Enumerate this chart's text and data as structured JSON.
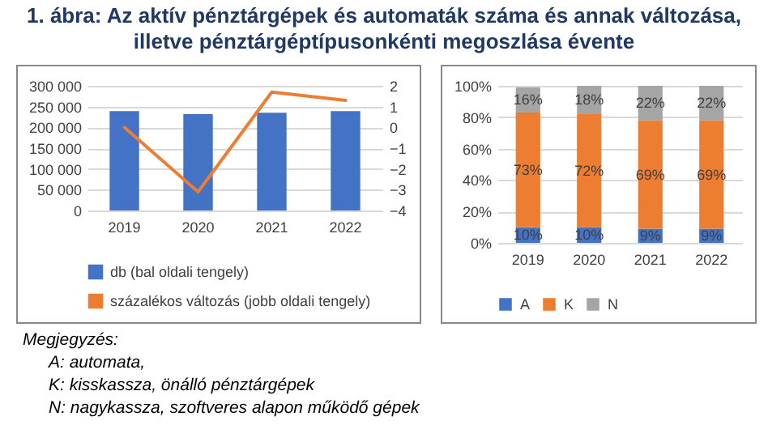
{
  "chart_data": [
    {
      "type": "bar",
      "title": "1. ábra: Az aktív pénztárgépek és automaták száma és annak változása, illetve pénztárgéptípusonkénti megoszlása évente",
      "categories": [
        "2019",
        "2020",
        "2021",
        "2022"
      ],
      "series": [
        {
          "type": "bar",
          "name": "db (bal oldali tengely)",
          "color": "#4472c4",
          "values": [
            239000,
            232000,
            235000,
            239000
          ]
        },
        {
          "type": "line",
          "name": "százalékos változás (jobb oldali tengely)",
          "color": "#ed7d31",
          "axis": "y2",
          "values": [
            0,
            -3.1,
            1.7,
            1.3
          ]
        }
      ],
      "ylim": [
        0,
        300000
      ],
      "yticks": [
        {
          "value": 0,
          "label": "0"
        },
        {
          "value": 50000,
          "label": "50 000"
        },
        {
          "value": 100000,
          "label": "100 000"
        },
        {
          "value": 150000,
          "label": "150 000"
        },
        {
          "value": 200000,
          "label": "200 000"
        },
        {
          "value": 250000,
          "label": "250 000"
        },
        {
          "value": 300000,
          "label": "300 000"
        }
      ],
      "y2lim": [
        -4,
        2
      ],
      "y2ticks": [
        -4,
        -3,
        -2,
        -1,
        0,
        1,
        2
      ],
      "grid": "y",
      "legend": "bottom"
    },
    {
      "type": "bar",
      "stacked": true,
      "categories": [
        "2019",
        "2020",
        "2021",
        "2022"
      ],
      "series": [
        {
          "name": "A",
          "color": "#4472c4",
          "values": [
            10,
            10,
            9,
            9
          ],
          "value_labels": [
            "10%",
            "10%",
            "9%",
            "9%"
          ]
        },
        {
          "name": "K",
          "color": "#ed7d31",
          "values": [
            73,
            72,
            69,
            69
          ],
          "value_labels": [
            "73%",
            "72%",
            "69%",
            "69%"
          ]
        },
        {
          "name": "N",
          "color": "#a5a5a5",
          "values": [
            16,
            18,
            22,
            22
          ],
          "value_labels": [
            "16%",
            "18%",
            "22%",
            "22%"
          ]
        }
      ],
      "ylim": [
        0,
        100
      ],
      "yticks": [
        {
          "value": 0,
          "label": "0%"
        },
        {
          "value": 20,
          "label": "20%"
        },
        {
          "value": 40,
          "label": "40%"
        },
        {
          "value": 60,
          "label": "60%"
        },
        {
          "value": 80,
          "label": "80%"
        },
        {
          "value": 100,
          "label": "100%"
        }
      ],
      "grid": "y",
      "legend": "bottom",
      "annotations": [
        "Megjegyzés:",
        "A: automata,",
        "K: kisskassza, önálló pénztárgépek",
        "N: nagykassza, szoftveres alapon működő gépek"
      ]
    }
  ]
}
